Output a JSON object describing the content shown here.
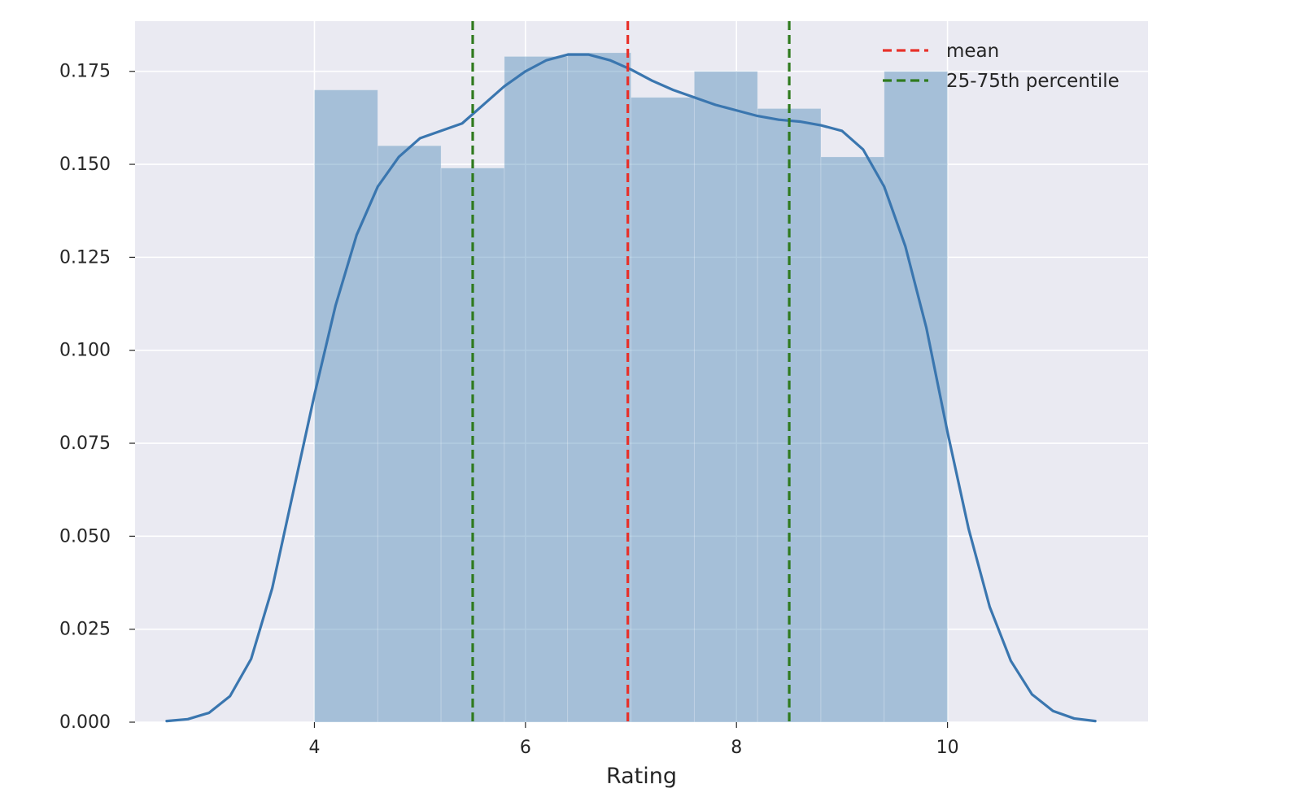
{
  "chart_data": {
    "type": "bar",
    "xlabel": "Rating",
    "ylabel": "",
    "xlim": [
      2.3,
      11.9
    ],
    "ylim": [
      0.0,
      0.1885
    ],
    "grid": true,
    "legend_position": "top-right",
    "x_ticks": [
      {
        "value": 4,
        "label": "4"
      },
      {
        "value": 6,
        "label": "6"
      },
      {
        "value": 8,
        "label": "8"
      },
      {
        "value": 10,
        "label": "10"
      }
    ],
    "y_ticks": [
      {
        "value": 0.0,
        "label": "0.000"
      },
      {
        "value": 0.025,
        "label": "0.025"
      },
      {
        "value": 0.05,
        "label": "0.050"
      },
      {
        "value": 0.075,
        "label": "0.075"
      },
      {
        "value": 0.1,
        "label": "0.100"
      },
      {
        "value": 0.125,
        "label": "0.125"
      },
      {
        "value": 0.15,
        "label": "0.150"
      },
      {
        "value": 0.175,
        "label": "0.175"
      }
    ],
    "histogram": {
      "bin_edges": [
        4.0,
        4.6,
        5.2,
        5.8,
        6.4,
        7.0,
        7.6,
        8.2,
        8.8,
        9.4,
        10.0
      ],
      "values": [
        0.17,
        0.155,
        0.149,
        0.179,
        0.18,
        0.168,
        0.175,
        0.165,
        0.152,
        0.175
      ],
      "color": "#4682b4"
    },
    "kde": {
      "color": "#3a76af",
      "points": [
        [
          2.6,
          0.0003
        ],
        [
          2.8,
          0.0008
        ],
        [
          3.0,
          0.0025
        ],
        [
          3.2,
          0.007
        ],
        [
          3.4,
          0.017
        ],
        [
          3.6,
          0.036
        ],
        [
          3.8,
          0.062
        ],
        [
          4.0,
          0.088
        ],
        [
          4.2,
          0.112
        ],
        [
          4.4,
          0.131
        ],
        [
          4.6,
          0.144
        ],
        [
          4.8,
          0.152
        ],
        [
          5.0,
          0.157
        ],
        [
          5.2,
          0.159
        ],
        [
          5.4,
          0.161
        ],
        [
          5.6,
          0.166
        ],
        [
          5.8,
          0.171
        ],
        [
          6.0,
          0.175
        ],
        [
          6.2,
          0.178
        ],
        [
          6.4,
          0.1795
        ],
        [
          6.6,
          0.1795
        ],
        [
          6.8,
          0.178
        ],
        [
          7.0,
          0.1755
        ],
        [
          7.2,
          0.1725
        ],
        [
          7.4,
          0.17
        ],
        [
          7.6,
          0.168
        ],
        [
          7.8,
          0.166
        ],
        [
          8.0,
          0.1645
        ],
        [
          8.2,
          0.163
        ],
        [
          8.4,
          0.162
        ],
        [
          8.6,
          0.1615
        ],
        [
          8.8,
          0.1605
        ],
        [
          9.0,
          0.159
        ],
        [
          9.2,
          0.154
        ],
        [
          9.4,
          0.144
        ],
        [
          9.6,
          0.128
        ],
        [
          9.8,
          0.106
        ],
        [
          10.0,
          0.078
        ],
        [
          10.2,
          0.052
        ],
        [
          10.4,
          0.031
        ],
        [
          10.6,
          0.0165
        ],
        [
          10.8,
          0.0075
        ],
        [
          11.0,
          0.003
        ],
        [
          11.2,
          0.001
        ],
        [
          11.4,
          0.0003
        ]
      ]
    },
    "vertical_lines": [
      {
        "name": "mean",
        "x": 6.97,
        "color": "#e8312a"
      },
      {
        "name": "25-75th percentile",
        "x": 5.5,
        "color": "#2f7a1e"
      },
      {
        "name": "25-75th percentile",
        "x": 8.5,
        "color": "#2f7a1e"
      }
    ],
    "legend": [
      {
        "label": "mean",
        "color": "#e8312a"
      },
      {
        "label": "25-75th percentile",
        "color": "#2f7a1e"
      }
    ],
    "colors": {
      "plot_background": "#eaeaf2",
      "grid": "#ffffff",
      "text": "#262626"
    }
  }
}
